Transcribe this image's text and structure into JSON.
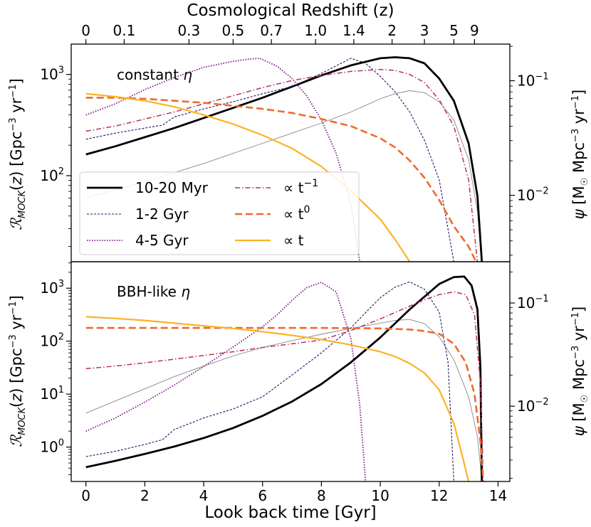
{
  "chart_data": {
    "type": "line",
    "top_axis_title": "Cosmological Redshift (z)",
    "xlabel": "Look back time [Gyr]",
    "xlim": [
      -0.5,
      14.4
    ],
    "x_ticks": [
      0,
      2,
      4,
      6,
      8,
      10,
      12,
      14
    ],
    "x_tick_labels": [
      "0",
      "2",
      "4",
      "6",
      "8",
      "10",
      "12",
      "14"
    ],
    "redshift_ticks": [
      {
        "label": "0",
        "t": 0.0
      },
      {
        "label": "0.1",
        "t": 1.3
      },
      {
        "label": "0.3",
        "t": 3.5
      },
      {
        "label": "0.5",
        "t": 5.0
      },
      {
        "label": "0.7",
        "t": 6.3
      },
      {
        "label": "1.0",
        "t": 7.8
      },
      {
        "label": "1.4",
        "t": 9.1
      },
      {
        "label": "2",
        "t": 10.4
      },
      {
        "label": "3",
        "t": 11.5
      },
      {
        "label": "5",
        "t": 12.5
      },
      {
        "label": "9",
        "t": 13.2
      }
    ],
    "legend": {
      "placement": "lower-left of top panel",
      "entries": [
        {
          "label": "10-20 Myr",
          "series": "s1020",
          "color": "#000000"
        },
        {
          "label": "1-2 Gyr",
          "series": "s12",
          "color": "#2a0f64"
        },
        {
          "label": "4-5 Gyr",
          "series": "s45",
          "color": "#7b1c82"
        },
        {
          "label": "∝ t",
          "sup": "−1",
          "series": "tm1",
          "color": "#b8325a"
        },
        {
          "label": "∝ t",
          "sup": "0",
          "series": "t0",
          "color": "#ee6a2e"
        },
        {
          "label": "∝ t",
          "sup": "",
          "series": "t1",
          "color": "#fbb324"
        }
      ]
    },
    "panels": [
      {
        "id": "top",
        "annotation_prefix": "constant ",
        "annotation_symbol": "η",
        "ylabel_left": "R_MOCK(z) [Gpc−3 yr−1]",
        "ylabel_right": "ψ [M☉ Mpc−3 yr−1]",
        "ylim_log10": [
          1.15,
          3.3
        ],
        "left_ticks": [
          {
            "exp": 2,
            "label": "10",
            "sup": "2"
          },
          {
            "exp": 3,
            "label": "10",
            "sup": "3"
          }
        ],
        "right_ylim_log10": [
          -2.58,
          -0.68
        ],
        "right_ticks": [
          {
            "exp": -2,
            "label": "10",
            "sup": "−2"
          },
          {
            "exp": -1,
            "label": "10",
            "sup": "−1"
          }
        ],
        "series": [
          {
            "key": "psi",
            "name": "SFR density ψ (gray)",
            "color": "#888888",
            "width": 0.9,
            "dash": "",
            "x": [
              0,
              1,
              2,
              3,
              4,
              5,
              6,
              7,
              8,
              9,
              10,
              10.5,
              11,
              11.5,
              12,
              12.5,
              13,
              13.3,
              13.45
            ],
            "y": [
              1.78,
              1.86,
              1.94,
              2.03,
              2.12,
              2.22,
              2.32,
              2.42,
              2.52,
              2.63,
              2.76,
              2.81,
              2.84,
              2.82,
              2.73,
              2.55,
              2.16,
              1.65,
              1.15
            ]
          },
          {
            "key": "s1020",
            "name": "10-20 Myr",
            "color": "#000000",
            "width": 2.8,
            "dash": "",
            "x": [
              0,
              1,
              2,
              3,
              4,
              5,
              6,
              7,
              8,
              9,
              10,
              10.5,
              11,
              11.5,
              12,
              12.5,
              13,
              13.3,
              13.45
            ],
            "y": [
              2.21,
              2.29,
              2.38,
              2.47,
              2.57,
              2.67,
              2.77,
              2.88,
              2.99,
              3.09,
              3.16,
              3.17,
              3.16,
              3.11,
              2.96,
              2.74,
              2.32,
              1.8,
              1.15
            ]
          },
          {
            "key": "s12",
            "name": "1-2 Gyr",
            "color": "#2a0f64",
            "width": 1.1,
            "dash": "3,2",
            "x": [
              0,
              1,
              2,
              2.6,
              3,
              4,
              5,
              6,
              7,
              8,
              9,
              9.5,
              10,
              10.5,
              11,
              11.5,
              12,
              12.5
            ],
            "y": [
              2.36,
              2.42,
              2.47,
              2.5,
              2.58,
              2.66,
              2.73,
              2.81,
              2.88,
              3.01,
              3.16,
              3.11,
              2.98,
              2.83,
              2.63,
              2.35,
              1.96,
              1.15
            ]
          },
          {
            "key": "s45",
            "name": "4-5 Gyr",
            "color": "#7b1c82",
            "width": 1.8,
            "dash": "1.5,2",
            "x": [
              0,
              1,
              2,
              3,
              4,
              5,
              5.5,
              5.9,
              6.5,
              7,
              7.5,
              8,
              8.5,
              9,
              9.3
            ],
            "y": [
              2.6,
              2.71,
              2.85,
              2.97,
              3.07,
              3.13,
              3.15,
              3.16,
              3.08,
              2.96,
              2.79,
              2.55,
              2.22,
              1.72,
              1.15
            ]
          },
          {
            "key": "tm1",
            "name": "∝ t^−1",
            "color": "#b8325a",
            "width": 1.5,
            "dash": "7,3,1.5,3",
            "x": [
              0,
              1,
              2,
              3,
              4,
              5,
              6,
              7,
              8,
              9,
              10,
              10.5,
              11,
              11.5,
              12,
              12.5,
              13,
              13.3
            ],
            "y": [
              2.44,
              2.49,
              2.56,
              2.63,
              2.71,
              2.79,
              2.87,
              2.94,
              2.99,
              3.03,
              3.05,
              3.04,
              3.0,
              2.92,
              2.75,
              2.49,
              1.96,
              1.15
            ]
          },
          {
            "key": "t0",
            "name": "∝ t^0",
            "color": "#ee6a2e",
            "width": 2.6,
            "dash": "10,5",
            "x": [
              0,
              1,
              2,
              3,
              4,
              5,
              6,
              7,
              8,
              9,
              10,
              10.5,
              11,
              11.5,
              12,
              12.5,
              13,
              13.25
            ],
            "y": [
              2.77,
              2.77,
              2.76,
              2.74,
              2.72,
              2.69,
              2.66,
              2.62,
              2.56,
              2.49,
              2.37,
              2.28,
              2.15,
              1.98,
              1.76,
              1.5,
              1.3,
              1.15
            ]
          },
          {
            "key": "t1",
            "name": "∝ t",
            "color": "#fbb324",
            "width": 2.2,
            "dash": "",
            "x": [
              0,
              1,
              2,
              3,
              4,
              5,
              6,
              7,
              8,
              9,
              10,
              10.5,
              11
            ],
            "y": [
              2.81,
              2.78,
              2.74,
              2.68,
              2.6,
              2.51,
              2.4,
              2.27,
              2.09,
              1.85,
              1.57,
              1.37,
              1.15
            ]
          }
        ]
      },
      {
        "id": "bottom",
        "annotation_prefix": "BBH-like ",
        "annotation_symbol": "η",
        "ylabel_left": "R_MOCK(z) [Gpc−3 yr−1]",
        "ylabel_right": "ψ [M☉ Mpc−3 yr−1]",
        "ylim_log10": [
          -0.65,
          3.5
        ],
        "left_ticks": [
          {
            "exp": 0,
            "label": "10",
            "sup": "0"
          },
          {
            "exp": 1,
            "label": "10",
            "sup": "1"
          },
          {
            "exp": 2,
            "label": "10",
            "sup": "2"
          },
          {
            "exp": 3,
            "label": "10",
            "sup": "3"
          }
        ],
        "right_ylim_log10": [
          -2.73,
          -0.6
        ],
        "right_ticks": [
          {
            "exp": -2,
            "label": "10",
            "sup": "−2"
          },
          {
            "exp": -1,
            "label": "10",
            "sup": "−1"
          }
        ],
        "series": [
          {
            "key": "psi",
            "name": "SFR density ψ (gray)",
            "color": "#888888",
            "width": 0.9,
            "dash": "",
            "x": [
              0,
              1,
              2,
              3,
              4,
              5,
              6,
              7,
              8,
              9,
              10,
              10.5,
              11,
              11.5,
              12,
              12.5,
              13,
              13.3,
              13.45
            ],
            "y": [
              0.64,
              0.87,
              1.1,
              1.33,
              1.53,
              1.72,
              1.88,
              2.01,
              2.13,
              2.24,
              2.34,
              2.39,
              2.41,
              2.33,
              2.08,
              1.65,
              0.95,
              0.2,
              -0.65
            ]
          },
          {
            "key": "s1020",
            "name": "10-20 Myr",
            "color": "#000000",
            "width": 2.8,
            "dash": "",
            "x": [
              0,
              1,
              2,
              3,
              4,
              5,
              6,
              7,
              8,
              9,
              10,
              11,
              12,
              12.5,
              12.85,
              13.1,
              13.3,
              13.4,
              13.45
            ],
            "y": [
              -0.38,
              -0.26,
              -0.13,
              0.01,
              0.17,
              0.36,
              0.59,
              0.86,
              1.19,
              1.6,
              2.07,
              2.6,
              3.08,
              3.21,
              3.22,
              3.05,
              2.6,
              1.5,
              -0.65
            ]
          },
          {
            "key": "s12",
            "name": "1-2 Gyr",
            "color": "#2a0f64",
            "width": 1.1,
            "dash": "3,2",
            "x": [
              0,
              1,
              2,
              2.6,
              3,
              4,
              5,
              6,
              7,
              8,
              9,
              9.5,
              10,
              10.5,
              11,
              11.5,
              12,
              12.3,
              12.5
            ],
            "y": [
              -0.18,
              -0.08,
              0.05,
              0.14,
              0.33,
              0.55,
              0.72,
              0.95,
              1.36,
              1.78,
              2.25,
              2.54,
              2.82,
              3.02,
              3.12,
              2.98,
              2.55,
              1.6,
              -0.65
            ]
          },
          {
            "key": "s45",
            "name": "4-5 Gyr",
            "color": "#7b1c82",
            "width": 1.8,
            "dash": "1.5,2",
            "x": [
              0,
              1,
              2,
              3,
              4,
              5,
              6,
              6.5,
              7,
              7.5,
              8,
              8.5,
              9,
              9.3,
              9.5
            ],
            "y": [
              0.3,
              0.55,
              0.85,
              1.17,
              1.52,
              1.89,
              2.27,
              2.5,
              2.77,
              3.01,
              3.11,
              2.93,
              2.05,
              0.8,
              -0.65
            ]
          },
          {
            "key": "tm1",
            "name": "∝ t^−1",
            "color": "#b8325a",
            "width": 1.5,
            "dash": "7,3,1.5,3",
            "x": [
              0,
              1,
              2,
              3,
              4,
              5,
              6,
              7,
              8,
              9,
              10,
              11,
              11.5,
              12,
              12.5,
              12.9,
              13.2,
              13.4,
              13.5
            ],
            "y": [
              1.48,
              1.53,
              1.59,
              1.66,
              1.73,
              1.8,
              1.88,
              1.95,
              2.02,
              2.2,
              2.42,
              2.66,
              2.78,
              2.88,
              2.93,
              2.88,
              2.5,
              1.2,
              -0.65
            ]
          },
          {
            "key": "t0",
            "name": "∝ t^0",
            "color": "#ee6a2e",
            "width": 2.6,
            "dash": "10,5",
            "x": [
              0,
              2,
              4,
              6,
              8,
              10,
              11,
              11.5,
              12,
              12.5,
              12.9,
              13.2,
              13.4,
              13.5
            ],
            "y": [
              2.25,
              2.25,
              2.25,
              2.25,
              2.25,
              2.24,
              2.22,
              2.19,
              2.14,
              1.95,
              1.6,
              1.0,
              0.1,
              -0.65
            ]
          },
          {
            "key": "t1",
            "name": "∝ t",
            "color": "#fbb324",
            "width": 2.2,
            "dash": "",
            "x": [
              0,
              1,
              2,
              3,
              4,
              5,
              6,
              7,
              8,
              9,
              10,
              10.5,
              11,
              11.5,
              12,
              12.5,
              12.8,
              13.0
            ],
            "y": [
              2.46,
              2.43,
              2.39,
              2.34,
              2.29,
              2.24,
              2.18,
              2.11,
              2.03,
              1.93,
              1.8,
              1.71,
              1.58,
              1.4,
              1.08,
              0.45,
              -0.2,
              -0.65
            ]
          }
        ]
      }
    ]
  }
}
